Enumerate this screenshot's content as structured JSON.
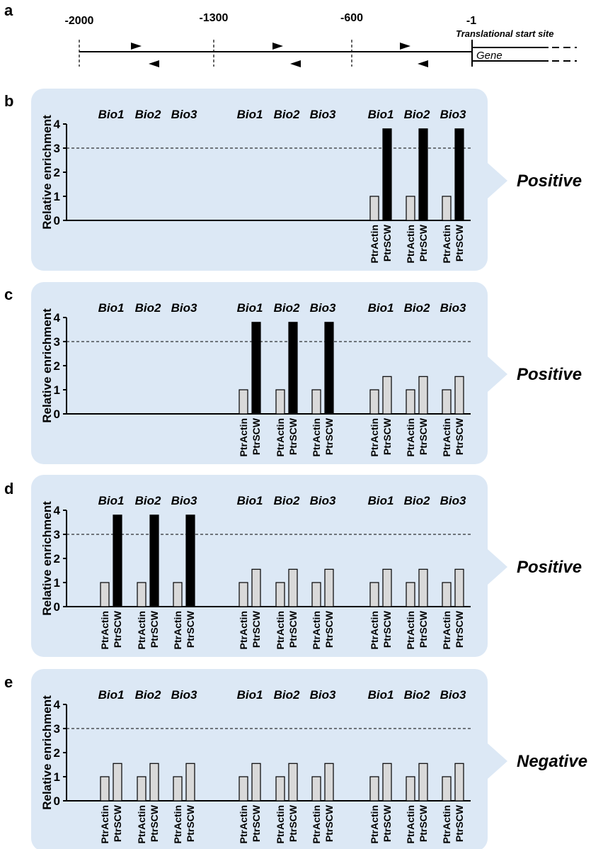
{
  "schematic": {
    "panel_label": "a",
    "positions": [
      "-2000",
      "-1300",
      "-600",
      "-1"
    ],
    "tss_label": "Translational start site",
    "gene_label": "Gene"
  },
  "chart_data": [
    {
      "type": "bar",
      "panel_label": "b",
      "ylabel": "Relative enrichment",
      "ylim": [
        0,
        4
      ],
      "yticks": [
        0,
        1,
        2,
        3,
        4
      ],
      "threshold": 3,
      "replicate_labels": [
        "Bio1",
        "Bio2",
        "Bio3",
        "Bio1",
        "Bio2",
        "Bio3",
        "Bio1",
        "Bio2",
        "Bio3"
      ],
      "bar_labels": [
        "PtrActin",
        "PtrSCW"
      ],
      "series": [
        {
          "name": "PtrActin",
          "color": "#d9d9d9",
          "values": [
            null,
            null,
            null,
            null,
            null,
            null,
            1,
            1,
            1
          ]
        },
        {
          "name": "PtrSCW",
          "colors": [
            "#d9d9d9",
            "#d9d9d9",
            "#d9d9d9",
            "#d9d9d9",
            "#d9d9d9",
            "#d9d9d9",
            "#000000",
            "#000000",
            "#000000"
          ],
          "values": [
            null,
            null,
            null,
            null,
            null,
            null,
            3.8,
            3.8,
            3.8
          ]
        }
      ],
      "result": "Positive"
    },
    {
      "type": "bar",
      "panel_label": "c",
      "ylabel": "Relative enrichment",
      "ylim": [
        0,
        4
      ],
      "yticks": [
        0,
        1,
        2,
        3,
        4
      ],
      "threshold": 3,
      "replicate_labels": [
        "Bio1",
        "Bio2",
        "Bio3",
        "Bio1",
        "Bio2",
        "Bio3",
        "Bio1",
        "Bio2",
        "Bio3"
      ],
      "bar_labels": [
        "PtrActin",
        "PtrSCW"
      ],
      "series": [
        {
          "name": "PtrActin",
          "color": "#d9d9d9",
          "values": [
            null,
            null,
            null,
            1,
            1,
            1,
            1,
            1,
            1
          ]
        },
        {
          "name": "PtrSCW",
          "colors": [
            "#d9d9d9",
            "#d9d9d9",
            "#d9d9d9",
            "#000000",
            "#000000",
            "#000000",
            "#d9d9d9",
            "#d9d9d9",
            "#d9d9d9"
          ],
          "values": [
            null,
            null,
            null,
            3.8,
            3.8,
            3.8,
            1.55,
            1.55,
            1.55
          ]
        }
      ],
      "result": "Positive"
    },
    {
      "type": "bar",
      "panel_label": "d",
      "ylabel": "Relative enrichment",
      "ylim": [
        0,
        4
      ],
      "yticks": [
        0,
        1,
        2,
        3,
        4
      ],
      "threshold": 3,
      "replicate_labels": [
        "Bio1",
        "Bio2",
        "Bio3",
        "Bio1",
        "Bio2",
        "Bio3",
        "Bio1",
        "Bio2",
        "Bio3"
      ],
      "bar_labels": [
        "PtrActin",
        "PtrSCW"
      ],
      "series": [
        {
          "name": "PtrActin",
          "color": "#d9d9d9",
          "values": [
            1,
            1,
            1,
            1,
            1,
            1,
            1,
            1,
            1
          ]
        },
        {
          "name": "PtrSCW",
          "colors": [
            "#000000",
            "#000000",
            "#000000",
            "#d9d9d9",
            "#d9d9d9",
            "#d9d9d9",
            "#d9d9d9",
            "#d9d9d9",
            "#d9d9d9"
          ],
          "values": [
            3.8,
            3.8,
            3.8,
            1.55,
            1.55,
            1.55,
            1.55,
            1.55,
            1.55
          ]
        }
      ],
      "result": "Positive"
    },
    {
      "type": "bar",
      "panel_label": "e",
      "ylabel": "Relative enrichment",
      "ylim": [
        0,
        4
      ],
      "yticks": [
        0,
        1,
        2,
        3,
        4
      ],
      "threshold": 3,
      "replicate_labels": [
        "Bio1",
        "Bio2",
        "Bio3",
        "Bio1",
        "Bio2",
        "Bio3",
        "Bio1",
        "Bio2",
        "Bio3"
      ],
      "bar_labels": [
        "PtrActin",
        "PtrSCW"
      ],
      "series": [
        {
          "name": "PtrActin",
          "color": "#d9d9d9",
          "values": [
            1,
            1,
            1,
            1,
            1,
            1,
            1,
            1,
            1
          ]
        },
        {
          "name": "PtrSCW",
          "colors": [
            "#d9d9d9",
            "#d9d9d9",
            "#d9d9d9",
            "#d9d9d9",
            "#d9d9d9",
            "#d9d9d9",
            "#d9d9d9",
            "#d9d9d9",
            "#d9d9d9"
          ],
          "values": [
            1.55,
            1.55,
            1.55,
            1.55,
            1.55,
            1.55,
            1.55,
            1.55,
            1.55
          ]
        }
      ],
      "result": "Negative"
    }
  ],
  "colors": {
    "panel_background": "#dce8f5",
    "bar_gray": "#d9d9d9",
    "bar_black": "#000000"
  }
}
